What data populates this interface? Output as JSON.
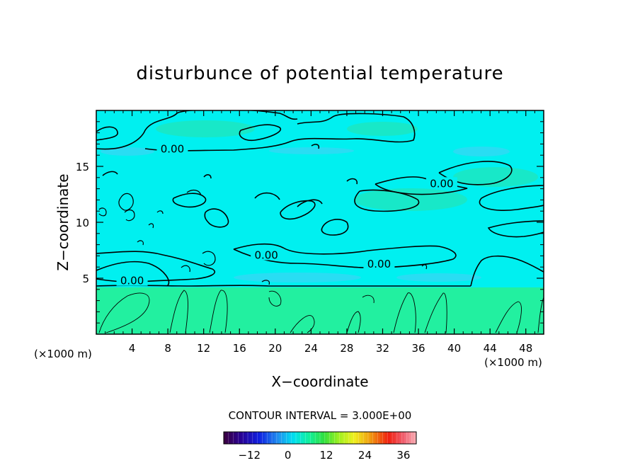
{
  "chart_data": {
    "type": "contour",
    "title": "disturbunce of potential temperature",
    "xlabel": "X−coordinate",
    "ylabel": "Z−coordinate",
    "x_unit_left": "(×1000 m)",
    "x_unit_right": "(×1000 m)",
    "xlim": [
      0,
      50
    ],
    "ylim": [
      0,
      20
    ],
    "x_ticks": [
      4,
      8,
      12,
      16,
      20,
      24,
      28,
      32,
      36,
      40,
      44,
      48
    ],
    "y_ticks": [
      5,
      10,
      15
    ],
    "contour_interval_label": "CONTOUR INTERVAL = 3.000E+00",
    "contour_labels": [
      {
        "text": "0.00",
        "x": 8.5,
        "y": 16.5
      },
      {
        "text": "0.00",
        "x": 38.6,
        "y": 13.4
      },
      {
        "text": "0.00",
        "x": 19.0,
        "y": 7.0
      },
      {
        "text": "0.00",
        "x": 31.6,
        "y": 6.2
      },
      {
        "text": "0.00",
        "x": 4.0,
        "y": 4.7
      }
    ],
    "colorbar": {
      "min": -20,
      "max": 40,
      "tick_values": [
        -12,
        0,
        12,
        24,
        36
      ],
      "tick_labels": [
        "−12",
        "0",
        "12",
        "24",
        "36"
      ]
    },
    "fill_colors": {
      "upper_layer": "#00f0f0",
      "lower_layer": "#22f0a0",
      "patch_cool": "#29ddf3",
      "patch_warm": "#18e8c8"
    },
    "grid": false,
    "legend": "colorbar-bottom"
  }
}
